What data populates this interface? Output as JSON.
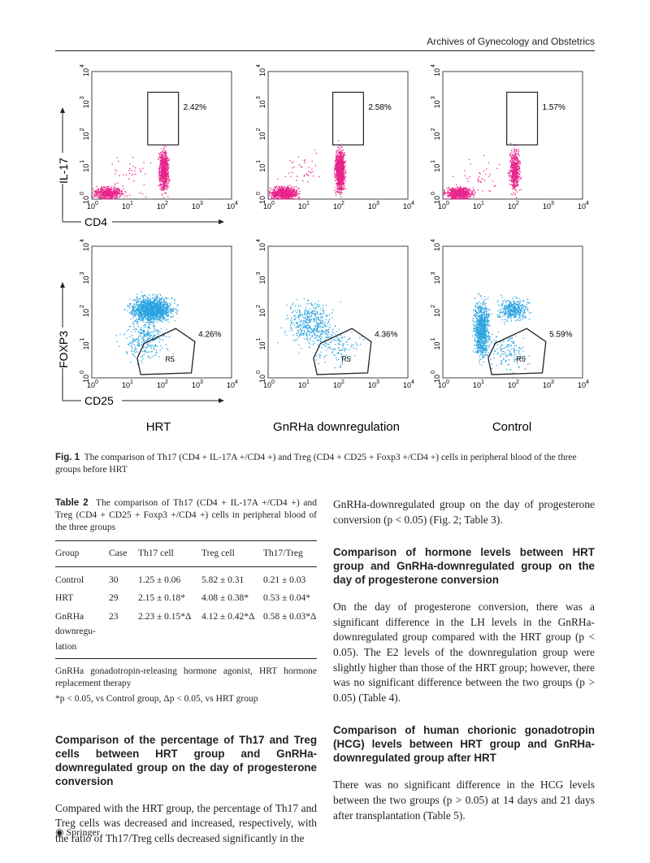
{
  "header": {
    "journal": "Archives of Gynecology and Obstetrics"
  },
  "figure": {
    "colors": {
      "il17": "#e8238a",
      "foxp3": "#2aa3e0"
    },
    "top_row": {
      "y_axis": "IL-17",
      "x_axis": "CD4",
      "gates": [
        "2.42%",
        "2.58%",
        "1.57%"
      ]
    },
    "bottom_row": {
      "y_axis": "FOXP3",
      "x_axis": "CD25",
      "gates": [
        "4.26%",
        "4.36%",
        "5.59%"
      ],
      "region": "R5"
    },
    "ticks": [
      "0",
      "1",
      "2",
      "3",
      "4"
    ],
    "group_labels": [
      "HRT",
      "GnRHa downregulation",
      "Control"
    ],
    "caption_label": "Fig. 1",
    "caption": "The comparison of Th17 (CD4 + IL-17A +/CD4 +) and Treg (CD4 + CD25 + Foxp3 +/CD4 +) cells in peripheral blood of the three groups before HRT"
  },
  "table2": {
    "label": "Table 2",
    "caption": "The comparison of Th17 (CD4 + IL-17A +/CD4 +) and Treg (CD4 + CD25 + Foxp3 +/CD4 +) cells in peripheral blood of the three groups",
    "headers": [
      "Group",
      "Case",
      "Th17 cell",
      "Treg cell",
      "Th17/Treg"
    ],
    "rows": [
      [
        "Control",
        "30",
        "1.25 ± 0.06",
        "5.82 ± 0.31",
        "0.21 ± 0.03"
      ],
      [
        "HRT",
        "29",
        "2.15 ± 0.18*",
        "4.08 ± 0.38*",
        "0.53 ± 0.04*"
      ],
      [
        "GnRHa downregu-lation",
        "23",
        "2.23 ± 0.15*Δ",
        "4.12 ± 0.42*Δ",
        "0.58 ± 0.03*Δ"
      ]
    ],
    "footnote1": "GnRHa gonadotropin-releasing hormone agonist, HRT hormone replacement therapy",
    "footnote2": "*p < 0.05, vs Control group, Δp < 0.05, vs HRT group"
  },
  "left": {
    "heading": "Comparison of the percentage of Th17 and Treg cells between HRT group and GnRHa-downregulated group on the day of progesterone conversion",
    "para": "Compared with the HRT group, the percentage of Th17 and Treg cells was decreased and increased, respectively, with the ratio of Th17/Treg cells decreased significantly in the"
  },
  "right": {
    "para0": "GnRHa-downregulated group on the day of progesterone conversion (p < 0.05) (Fig. 2; Table 3).",
    "heading1": "Comparison of hormone levels between HRT group and GnRHa-downregulated group on the day of progesterone conversion",
    "para1": "On the day of progesterone conversion, there was a significant difference in the LH levels in the GnRHa-downregulated group compared with the HRT group (p < 0.05). The E2 levels of the downregulation group were slightly higher than those of the HRT group; however, there was no significant difference between the two groups (p > 0.05) (Table 4).",
    "heading2": "Comparison of human chorionic gonadotropin (HCG) levels between HRT group and GnRHa-downregulated group after HRT",
    "para2": "There was no significant difference in the HCG levels between the two groups (p > 0.05) at 14 days and 21 days after transplantation (Table 5)."
  },
  "footer": {
    "publisher": "Springer"
  }
}
